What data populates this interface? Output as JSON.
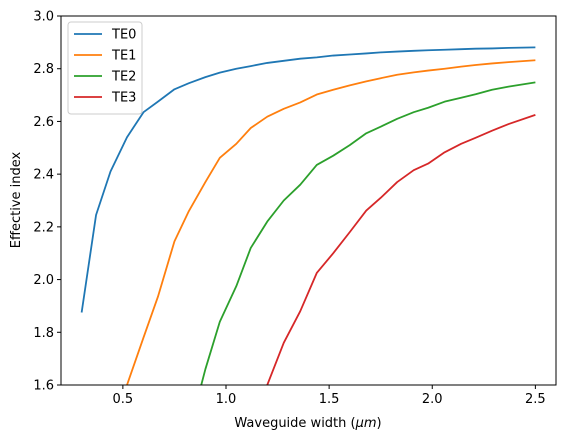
{
  "chart_data": {
    "type": "line",
    "title": "",
    "xlabel": "Waveguide width (",
    "xlabel_unit": "μm",
    "xlabel_end": ")",
    "ylabel": "Effective index",
    "xlim": [
      0.2,
      2.6
    ],
    "ylim": [
      1.6,
      3.0
    ],
    "xticks": [
      0.5,
      1.0,
      1.5,
      2.0,
      2.5
    ],
    "xtick_labels": [
      "0.5",
      "1.0",
      "1.5",
      "2.0",
      "2.5"
    ],
    "yticks": [
      1.6,
      1.8,
      2.0,
      2.2,
      2.4,
      2.6,
      2.8,
      3.0
    ],
    "ytick_labels": [
      "1.6",
      "1.8",
      "2.0",
      "2.2",
      "2.4",
      "2.6",
      "2.8",
      "3.0"
    ],
    "grid": false,
    "legend_position": "top-left",
    "series": [
      {
        "name": "TE0",
        "color": "#1f77b4",
        "x": [
          0.3,
          0.37,
          0.44,
          0.52,
          0.6,
          0.67,
          0.75,
          0.82,
          0.9,
          0.97,
          1.05,
          1.12,
          1.2,
          1.28,
          1.36,
          1.44,
          1.52,
          1.6,
          1.68,
          1.75,
          1.83,
          1.91,
          1.98,
          2.06,
          2.14,
          2.21,
          2.29,
          2.37,
          2.5
        ],
        "y": [
          1.875,
          2.245,
          2.41,
          2.54,
          2.635,
          2.675,
          2.722,
          2.745,
          2.768,
          2.785,
          2.8,
          2.81,
          2.822,
          2.83,
          2.838,
          2.843,
          2.85,
          2.854,
          2.858,
          2.862,
          2.865,
          2.868,
          2.87,
          2.872,
          2.874,
          2.876,
          2.877,
          2.879,
          2.881
        ]
      },
      {
        "name": "TE1",
        "color": "#ff7f0e",
        "x": [
          0.52,
          0.6,
          0.67,
          0.75,
          0.82,
          0.9,
          0.97,
          1.05,
          1.12,
          1.2,
          1.28,
          1.36,
          1.44,
          1.52,
          1.6,
          1.68,
          1.75,
          1.83,
          1.91,
          1.98,
          2.06,
          2.14,
          2.21,
          2.29,
          2.37,
          2.5
        ],
        "y": [
          1.6,
          1.78,
          1.935,
          2.145,
          2.26,
          2.37,
          2.462,
          2.515,
          2.575,
          2.618,
          2.648,
          2.672,
          2.702,
          2.72,
          2.737,
          2.752,
          2.764,
          2.777,
          2.786,
          2.793,
          2.8,
          2.808,
          2.814,
          2.82,
          2.825,
          2.832
        ]
      },
      {
        "name": "TE2",
        "color": "#2ca02c",
        "x": [
          0.88,
          0.9,
          0.97,
          1.05,
          1.12,
          1.2,
          1.28,
          1.36,
          1.44,
          1.52,
          1.6,
          1.68,
          1.75,
          1.83,
          1.91,
          1.98,
          2.06,
          2.14,
          2.21,
          2.29,
          2.37,
          2.5
        ],
        "y": [
          1.6,
          1.66,
          1.84,
          1.975,
          2.12,
          2.22,
          2.3,
          2.36,
          2.435,
          2.47,
          2.51,
          2.555,
          2.58,
          2.61,
          2.635,
          2.652,
          2.675,
          2.69,
          2.703,
          2.72,
          2.732,
          2.748
        ]
      },
      {
        "name": "TE3",
        "color": "#d62728",
        "x": [
          1.2,
          1.28,
          1.36,
          1.44,
          1.52,
          1.6,
          1.68,
          1.75,
          1.83,
          1.91,
          1.98,
          2.06,
          2.14,
          2.21,
          2.29,
          2.37,
          2.5
        ],
        "y": [
          1.6,
          1.76,
          1.88,
          2.025,
          2.1,
          2.18,
          2.262,
          2.31,
          2.37,
          2.415,
          2.44,
          2.483,
          2.515,
          2.538,
          2.565,
          2.59,
          2.625
        ]
      }
    ]
  }
}
